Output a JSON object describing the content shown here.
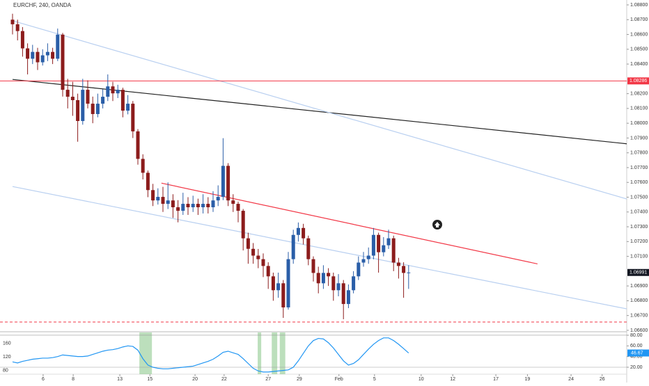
{
  "chart_data": {
    "type": "candlestick",
    "title": "EURCHF, 240, OANDA",
    "up_color": "#2a5ea8",
    "down_color": "#8c1c1c",
    "xlim": [
      -2.5,
      122.5
    ],
    "ylim": [
      1.06595,
      1.08833
    ],
    "xticks": [
      {
        "value": 6.1,
        "label": "6"
      },
      {
        "value": 12.1,
        "label": "8"
      },
      {
        "value": 21.4,
        "label": "13"
      },
      {
        "value": 27.4,
        "label": "15"
      },
      {
        "value": 36.4,
        "label": "20"
      },
      {
        "value": 42.2,
        "label": "22"
      },
      {
        "value": 51,
        "label": "27"
      },
      {
        "value": 57.2,
        "label": "29"
      },
      {
        "value": 65.1,
        "label": "Feb"
      },
      {
        "value": 72.2,
        "label": "5"
      },
      {
        "value": 81.5,
        "label": "10"
      },
      {
        "value": 87.8,
        "label": "12"
      },
      {
        "value": 96.4,
        "label": "17"
      },
      {
        "value": 102.7,
        "label": "19"
      },
      {
        "value": 111.4,
        "label": "24"
      },
      {
        "value": 117.6,
        "label": "26"
      }
    ],
    "yticks": [
      {
        "value": 1.088,
        "label": "1.08800"
      },
      {
        "value": 1.087,
        "label": "1.08700"
      },
      {
        "value": 1.086,
        "label": "1.08600"
      },
      {
        "value": 1.085,
        "label": "1.08500"
      },
      {
        "value": 1.084,
        "label": "1.08400"
      },
      {
        "value": 1.082,
        "label": "1.08200"
      },
      {
        "value": 1.081,
        "label": "1.08100"
      },
      {
        "value": 1.08,
        "label": "1.08000"
      },
      {
        "value": 1.079,
        "label": "1.07900"
      },
      {
        "value": 1.078,
        "label": "1.07800"
      },
      {
        "value": 1.077,
        "label": "1.07700"
      },
      {
        "value": 1.076,
        "label": "1.07600"
      },
      {
        "value": 1.075,
        "label": "1.07500"
      },
      {
        "value": 1.074,
        "label": "1.07400"
      },
      {
        "value": 1.073,
        "label": "1.07300"
      },
      {
        "value": 1.072,
        "label": "1.07200"
      },
      {
        "value": 1.071,
        "label": "1.07100"
      },
      {
        "value": 1.069,
        "label": "1.06900"
      },
      {
        "value": 1.068,
        "label": "1.06800"
      },
      {
        "value": 1.067,
        "label": "1.06700"
      },
      {
        "value": 1.066,
        "label": "1.06600"
      }
    ],
    "ohlc": [
      [
        1.087,
        1.0874,
        1.086,
        1.08669
      ],
      [
        1.08669,
        1.087,
        1.0856,
        1.08623
      ],
      [
        1.08623,
        1.0865,
        1.0845,
        1.08506
      ],
      [
        1.08506,
        1.0854,
        1.0833,
        1.08436
      ],
      [
        1.08436,
        1.0853,
        1.084,
        1.08482
      ],
      [
        1.08482,
        1.0851,
        1.0836,
        1.08412
      ],
      [
        1.08412,
        1.085,
        1.0839,
        1.08459
      ],
      [
        1.08459,
        1.0854,
        1.0842,
        1.08482
      ],
      [
        1.08482,
        1.0851,
        1.084,
        1.08436
      ],
      [
        1.08436,
        1.0864,
        1.0842,
        1.08599
      ],
      [
        1.08599,
        1.0861,
        1.0818,
        1.08226
      ],
      [
        1.08226,
        1.083,
        1.081,
        1.08179
      ],
      [
        1.08179,
        1.0828,
        1.0805,
        1.08156
      ],
      [
        1.08156,
        1.082,
        1.07875,
        1.08015
      ],
      [
        1.08015,
        1.083,
        1.0799,
        1.08226
      ],
      [
        1.08226,
        1.0829,
        1.081,
        1.08132
      ],
      [
        1.08132,
        1.0818,
        1.08,
        1.08062
      ],
      [
        1.08062,
        1.082,
        1.0804,
        1.08132
      ],
      [
        1.08132,
        1.0823,
        1.081,
        1.08179
      ],
      [
        1.08179,
        1.0833,
        1.0815,
        1.08249
      ],
      [
        1.08249,
        1.0828,
        1.0815,
        1.08202
      ],
      [
        1.08202,
        1.0826,
        1.0817,
        1.08226
      ],
      [
        1.08226,
        1.0824,
        1.0804,
        1.08085
      ],
      [
        1.08085,
        1.0819,
        1.0806,
        1.08132
      ],
      [
        1.08132,
        1.0815,
        1.079,
        1.07945
      ],
      [
        1.07945,
        1.0796,
        1.0772,
        1.07759
      ],
      [
        1.07759,
        1.0779,
        1.0762,
        1.07665
      ],
      [
        1.07665,
        1.0768,
        1.075,
        1.07548
      ],
      [
        1.07548,
        1.0759,
        1.0744,
        1.07478
      ],
      [
        1.07478,
        1.0756,
        1.0745,
        1.07502
      ],
      [
        1.07502,
        1.0757,
        1.074,
        1.07455
      ],
      [
        1.07455,
        1.076,
        1.0742,
        1.07478
      ],
      [
        1.07478,
        1.0752,
        1.0736,
        1.07432
      ],
      [
        1.07432,
        1.0748,
        1.0733,
        1.07408
      ],
      [
        1.07408,
        1.0753,
        1.0738,
        1.07455
      ],
      [
        1.07455,
        1.075,
        1.0738,
        1.07432
      ],
      [
        1.07432,
        1.0751,
        1.074,
        1.07455
      ],
      [
        1.07455,
        1.0749,
        1.0738,
        1.07432
      ],
      [
        1.07432,
        1.0752,
        1.0739,
        1.07455
      ],
      [
        1.07455,
        1.075,
        1.0739,
        1.07432
      ],
      [
        1.07432,
        1.0754,
        1.074,
        1.07478
      ],
      [
        1.07478,
        1.0758,
        1.0744,
        1.07502
      ],
      [
        1.07502,
        1.07899,
        1.0748,
        1.07712
      ],
      [
        1.07712,
        1.0773,
        1.0744,
        1.07478
      ],
      [
        1.07478,
        1.0752,
        1.074,
        1.07455
      ],
      [
        1.07455,
        1.0747,
        1.0733,
        1.07408
      ],
      [
        1.07408,
        1.0742,
        1.0714,
        1.07222
      ],
      [
        1.07222,
        1.0726,
        1.0705,
        1.07151
      ],
      [
        1.07151,
        1.0719,
        1.0705,
        1.07105
      ],
      [
        1.07105,
        1.0715,
        1.0702,
        1.07081
      ],
      [
        1.07081,
        1.0712,
        1.0696,
        1.07035
      ],
      [
        1.07035,
        1.0706,
        1.0688,
        1.06965
      ],
      [
        1.06965,
        1.0699,
        1.068,
        1.06871
      ],
      [
        1.06871,
        1.0699,
        1.0682,
        1.06918
      ],
      [
        1.06918,
        1.0694,
        1.06684,
        1.06755
      ],
      [
        1.06755,
        1.0713,
        1.0674,
        1.07081
      ],
      [
        1.07081,
        1.0728,
        1.0705,
        1.07245
      ],
      [
        1.07245,
        1.07329,
        1.072,
        1.07292
      ],
      [
        1.07292,
        1.0732,
        1.0718,
        1.07222
      ],
      [
        1.07222,
        1.0724,
        1.0704,
        1.07081
      ],
      [
        1.07081,
        1.071,
        1.0693,
        1.06988
      ],
      [
        1.06988,
        1.0703,
        1.0685,
        1.06918
      ],
      [
        1.06918,
        1.0704,
        1.0688,
        1.06988
      ],
      [
        1.06988,
        1.0702,
        1.069,
        1.06965
      ],
      [
        1.06965,
        1.0699,
        1.068,
        1.06871
      ],
      [
        1.06871,
        1.0698,
        1.0683,
        1.06918
      ],
      [
        1.06918,
        1.0694,
        1.06675,
        1.06778
      ],
      [
        1.06778,
        1.0691,
        1.0675,
        1.06871
      ],
      [
        1.06871,
        1.07,
        1.0685,
        1.06965
      ],
      [
        1.06965,
        1.071,
        1.0694,
        1.07058
      ],
      [
        1.07058,
        1.0713,
        1.0703,
        1.07081
      ],
      [
        1.07081,
        1.0716,
        1.0705,
        1.07105
      ],
      [
        1.07105,
        1.07292,
        1.0708,
        1.07245
      ],
      [
        1.07245,
        1.0726,
        1.0699,
        1.07128
      ],
      [
        1.07128,
        1.0723,
        1.071,
        1.07175
      ],
      [
        1.07175,
        1.0728,
        1.0715,
        1.07222
      ],
      [
        1.07222,
        1.0724,
        1.07,
        1.07058
      ],
      [
        1.07058,
        1.0709,
        1.0695,
        1.07035
      ],
      [
        1.07035,
        1.0706,
        1.0682,
        1.06988
      ],
      [
        1.06988,
        1.0704,
        1.0688,
        1.06991
      ]
    ],
    "hline": {
      "value": 1.08286,
      "color": "#f23645"
    },
    "last_price": 1.06991,
    "dashed_level": {
      "value": 1.06656,
      "color": "#f23645"
    },
    "trendlines": [
      {
        "x": [
          0,
          122.5
        ],
        "y": [
          1.08296,
          1.07861
        ],
        "color": "#222222"
      },
      {
        "x": [
          0,
          122.5
        ],
        "y": [
          1.08693,
          1.07488
        ],
        "color": "#b8cff0"
      },
      {
        "x": [
          0,
          122.5
        ],
        "y": [
          1.07572,
          1.06745
        ],
        "color": "#b8cff0"
      },
      {
        "x": [
          29.7,
          104.7
        ],
        "y": [
          1.07595,
          1.07049
        ],
        "color": "#f23645"
      }
    ],
    "oscillator": {
      "color": "#2196f3",
      "ylim": [
        -8.7,
        85.2
      ],
      "yticks": [
        {
          "value": 80,
          "label": "80.00"
        },
        {
          "value": 60,
          "label": "60.00"
        },
        {
          "value": 40,
          "label": "40.00"
        },
        {
          "value": 20,
          "label": "20.00"
        }
      ],
      "levels": [
        80,
        20
      ],
      "left_lim": [
        45,
        192
      ],
      "left_ticks": [
        160,
        120,
        80
      ],
      "highlights": [
        [
          25.3,
          27.8
        ],
        [
          48.9,
          49.6
        ],
        [
          51.7,
          52.8
        ],
        [
          53.3,
          54.4
        ]
      ],
      "values": [
        30,
        28,
        31,
        33,
        35,
        36,
        37,
        37,
        38,
        40,
        43,
        42,
        41,
        40,
        40,
        41,
        44,
        47,
        50,
        52,
        53,
        55,
        58,
        60,
        59,
        52,
        36,
        24,
        20,
        18,
        17,
        17,
        18,
        19,
        20,
        21,
        22,
        25,
        28,
        31,
        35,
        41,
        48,
        50,
        47,
        44,
        36,
        27,
        18,
        13,
        11,
        11,
        12,
        13,
        14,
        15,
        20,
        32,
        46,
        60,
        70,
        74,
        73,
        66,
        56,
        44,
        32,
        24,
        27,
        34,
        44,
        54,
        63,
        70,
        75,
        75,
        70,
        63,
        55,
        46.67
      ]
    }
  }
}
